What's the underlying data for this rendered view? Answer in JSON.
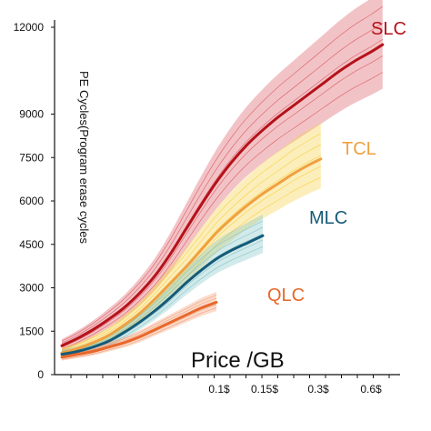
{
  "chart_data": {
    "type": "line",
    "title": "",
    "xlabel": "Price /GB",
    "ylabel": "PE Cycles(Program erase cycles",
    "ylim": [
      0,
      12000
    ],
    "yticks": [
      "0",
      "1500",
      "3000",
      "4500",
      "6000",
      "7500",
      "9000",
      "12000"
    ],
    "xticks": [
      "0.1$",
      "0.15$",
      "0.3$",
      "0.6$"
    ],
    "grid": false,
    "x_scale": "category",
    "series": [
      {
        "name": "SLC",
        "color": "#b5121b",
        "band_color": "#d9535b",
        "x": [
          0,
          0.2,
          0.4,
          0.6,
          0.8,
          1.0,
          1.2,
          1.4,
          1.6,
          1.8,
          2.0,
          2.2,
          2.4,
          2.6,
          2.8,
          3.0,
          3.2,
          3.4,
          3.6,
          3.8,
          4.0,
          4.15
        ],
        "values": [
          1000,
          1250,
          1550,
          1900,
          2300,
          2800,
          3400,
          4150,
          5000,
          5850,
          6650,
          7350,
          7950,
          8450,
          8900,
          9300,
          9700,
          10100,
          10500,
          10850,
          11150,
          11400
        ]
      },
      {
        "name": "TCL",
        "color": "#f0a040",
        "band_color": "#f5cf3c",
        "x": [
          0,
          0.2,
          0.4,
          0.6,
          0.8,
          1.0,
          1.2,
          1.4,
          1.6,
          1.8,
          2.0,
          2.2,
          2.4,
          2.6,
          2.8,
          3.0,
          3.2,
          3.35
        ],
        "values": [
          750,
          900,
          1100,
          1350,
          1700,
          2100,
          2600,
          3150,
          3700,
          4300,
          4900,
          5400,
          5850,
          6250,
          6600,
          6950,
          7250,
          7450
        ]
      },
      {
        "name": "MLC",
        "color": "#155a78",
        "band_color": "#7fc3c6",
        "x": [
          0,
          0.2,
          0.4,
          0.6,
          0.8,
          1.0,
          1.2,
          1.4,
          1.6,
          1.8,
          2.0,
          2.2,
          2.4,
          2.6
        ],
        "values": [
          700,
          800,
          950,
          1150,
          1450,
          1800,
          2200,
          2650,
          3150,
          3600,
          4000,
          4300,
          4550,
          4800
        ]
      },
      {
        "name": "QLC",
        "color": "#e8672a",
        "band_color": "#f29a70",
        "x": [
          0,
          0.2,
          0.4,
          0.6,
          0.8,
          1.0,
          1.2,
          1.4,
          1.6,
          1.8,
          2.0
        ],
        "values": [
          600,
          700,
          800,
          950,
          1100,
          1300,
          1550,
          1800,
          2050,
          2300,
          2500
        ]
      }
    ]
  }
}
